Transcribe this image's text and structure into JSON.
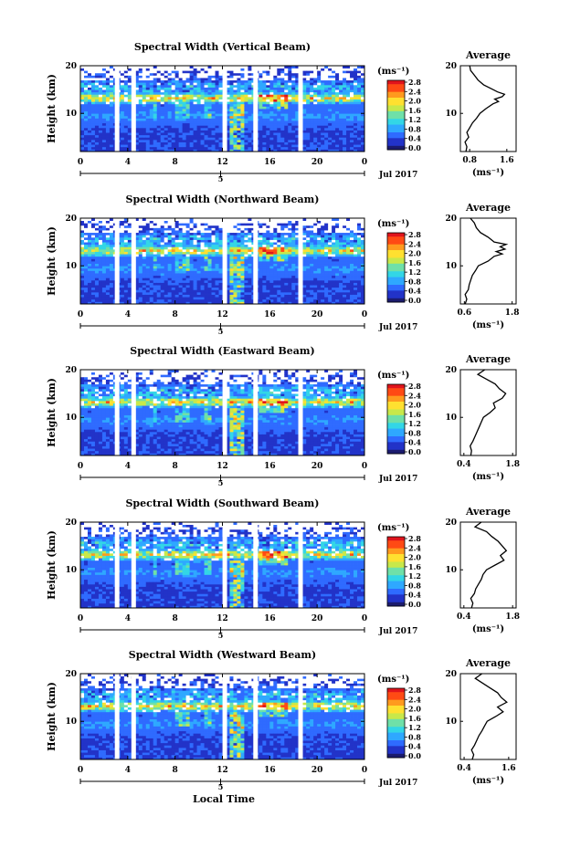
{
  "colors": {
    "colormap": [
      "#1b1b6e",
      "#2233c8",
      "#2f6bff",
      "#2fa8ff",
      "#33d6e6",
      "#6fe0a8",
      "#c8e84a",
      "#ffe030",
      "#ff9a1e",
      "#ff4a14",
      "#e0141c"
    ],
    "line": "#000000",
    "gap": "#ffffff"
  },
  "footer": {
    "xlabel": "Local Time"
  },
  "chart_data": [
    {
      "type": "heatmap",
      "title": "Spectral Width (Vertical Beam)",
      "ylabel": "Height (km)",
      "xlim": [
        0,
        24
      ],
      "ylim": [
        2,
        20
      ],
      "xticks": [
        "0",
        "4",
        "8",
        "12",
        "16",
        "20",
        "0"
      ],
      "yticks": [
        "20",
        "10"
      ],
      "date_tick": "5",
      "date_label": "Jul 2017",
      "colorbar": {
        "unit": "(ms⁻¹)",
        "range": [
          0.0,
          2.8
        ],
        "ticks": [
          "2.8",
          "2.4",
          "2.0",
          "1.6",
          "1.2",
          "0.8",
          "0.4",
          "0.0"
        ]
      },
      "gaps_hours": [
        3.1,
        4.5,
        12.2,
        14.8,
        18.6
      ],
      "avg": {
        "title": "Average",
        "xlabel": "(ms⁻¹)",
        "xticks": [
          "0.8",
          "1.6"
        ],
        "xlim": [
          0.6,
          1.8
        ],
        "profile": [
          [
            2,
            0.72
          ],
          [
            3,
            0.74
          ],
          [
            4,
            0.7
          ],
          [
            5,
            0.78
          ],
          [
            6,
            0.74
          ],
          [
            7,
            0.8
          ],
          [
            8,
            0.86
          ],
          [
            9,
            0.95
          ],
          [
            10,
            1.02
          ],
          [
            11,
            1.15
          ],
          [
            12,
            1.3
          ],
          [
            12.5,
            1.42
          ],
          [
            13,
            1.34
          ],
          [
            13.5,
            1.5
          ],
          [
            14,
            1.55
          ],
          [
            14.5,
            1.4
          ],
          [
            15,
            1.3
          ],
          [
            16,
            1.1
          ],
          [
            17,
            0.98
          ],
          [
            18,
            0.9
          ],
          [
            19,
            0.82
          ],
          [
            20,
            0.8
          ]
        ]
      }
    },
    {
      "type": "heatmap",
      "title": "Spectral Width (Northward Beam)",
      "ylabel": "Height (km)",
      "xlim": [
        0,
        24
      ],
      "ylim": [
        2,
        20
      ],
      "xticks": [
        "0",
        "4",
        "8",
        "12",
        "16",
        "20",
        "0"
      ],
      "yticks": [
        "20",
        "10"
      ],
      "date_tick": "5",
      "date_label": "Jul 2017",
      "colorbar": {
        "unit": "(ms⁻¹)",
        "range": [
          0.0,
          2.8
        ],
        "ticks": [
          "2.8",
          "2.4",
          "2.0",
          "1.6",
          "1.2",
          "0.8",
          "0.4",
          "0.0"
        ]
      },
      "gaps_hours": [
        3.1,
        4.5,
        12.2,
        14.8,
        18.6
      ],
      "avg": {
        "title": "Average",
        "xlabel": "(ms⁻¹)",
        "xticks": [
          "0.6",
          "1.8"
        ],
        "xlim": [
          0.5,
          1.9
        ],
        "profile": [
          [
            2,
            0.62
          ],
          [
            3,
            0.66
          ],
          [
            4,
            0.62
          ],
          [
            5,
            0.7
          ],
          [
            6,
            0.72
          ],
          [
            7,
            0.76
          ],
          [
            8,
            0.8
          ],
          [
            9,
            0.88
          ],
          [
            10,
            0.95
          ],
          [
            11,
            1.2
          ],
          [
            12,
            1.35
          ],
          [
            12.5,
            1.55
          ],
          [
            13,
            1.4
          ],
          [
            13.5,
            1.62
          ],
          [
            14,
            1.5
          ],
          [
            14.5,
            1.65
          ],
          [
            15,
            1.35
          ],
          [
            16,
            1.2
          ],
          [
            17,
            1.0
          ],
          [
            18,
            0.9
          ],
          [
            19,
            0.85
          ],
          [
            20,
            0.75
          ]
        ]
      }
    },
    {
      "type": "heatmap",
      "title": "Spectral Width (Eastward Beam)",
      "ylabel": "Height (km)",
      "xlim": [
        0,
        24
      ],
      "ylim": [
        2,
        20
      ],
      "xticks": [
        "0",
        "4",
        "8",
        "12",
        "16",
        "20",
        "0"
      ],
      "yticks": [
        "20",
        "10"
      ],
      "date_tick": "5",
      "date_label": "Jul 2017",
      "colorbar": {
        "unit": "(ms⁻¹)",
        "range": [
          0.0,
          2.8
        ],
        "ticks": [
          "2.8",
          "2.4",
          "2.0",
          "1.6",
          "1.2",
          "0.8",
          "0.4",
          "0.0"
        ]
      },
      "gaps_hours": [
        3.1,
        4.5,
        12.2,
        14.8,
        18.6
      ],
      "avg": {
        "title": "Average",
        "xlabel": "(ms⁻¹)",
        "xticks": [
          "0.4",
          "1.8"
        ],
        "xlim": [
          0.3,
          1.9
        ],
        "profile": [
          [
            2,
            0.6
          ],
          [
            3,
            0.62
          ],
          [
            4,
            0.58
          ],
          [
            5,
            0.66
          ],
          [
            6,
            0.72
          ],
          [
            7,
            0.78
          ],
          [
            8,
            0.84
          ],
          [
            9,
            0.9
          ],
          [
            10,
            0.96
          ],
          [
            11,
            1.15
          ],
          [
            12,
            1.3
          ],
          [
            13,
            1.25
          ],
          [
            14,
            1.5
          ],
          [
            15,
            1.6
          ],
          [
            16,
            1.42
          ],
          [
            17,
            1.3
          ],
          [
            18,
            1.05
          ],
          [
            19,
            0.8
          ],
          [
            20,
            1.0
          ]
        ]
      }
    },
    {
      "type": "heatmap",
      "title": "Spectral Width (Southward Beam)",
      "ylabel": "Height (km)",
      "xlim": [
        0,
        24
      ],
      "ylim": [
        2,
        20
      ],
      "xticks": [
        "0",
        "4",
        "8",
        "12",
        "16",
        "20",
        "0"
      ],
      "yticks": [
        "20",
        "10"
      ],
      "date_tick": "5",
      "date_label": "Jul 2017",
      "colorbar": {
        "unit": "(ms⁻¹)",
        "range": [
          0.0,
          2.8
        ],
        "ticks": [
          "2.8",
          "2.4",
          "2.0",
          "1.6",
          "1.2",
          "0.8",
          "0.4",
          "0.0"
        ]
      },
      "gaps_hours": [
        3.1,
        4.5,
        12.2,
        14.8,
        18.6
      ],
      "avg": {
        "title": "Average",
        "xlabel": "(ms⁻¹)",
        "xticks": [
          "0.4",
          "1.8"
        ],
        "xlim": [
          0.3,
          1.9
        ],
        "profile": [
          [
            2,
            0.62
          ],
          [
            3,
            0.66
          ],
          [
            4,
            0.6
          ],
          [
            5,
            0.7
          ],
          [
            6,
            0.74
          ],
          [
            7,
            0.82
          ],
          [
            8,
            0.9
          ],
          [
            9,
            0.95
          ],
          [
            10,
            1.05
          ],
          [
            11,
            1.3
          ],
          [
            12,
            1.55
          ],
          [
            13,
            1.45
          ],
          [
            14,
            1.62
          ],
          [
            15,
            1.5
          ],
          [
            16,
            1.38
          ],
          [
            17,
            1.2
          ],
          [
            18,
            1.05
          ],
          [
            19,
            0.72
          ],
          [
            20,
            0.9
          ]
        ]
      }
    },
    {
      "type": "heatmap",
      "title": "Spectral Width (Westward Beam)",
      "ylabel": "Height (km)",
      "xlim": [
        0,
        24
      ],
      "ylim": [
        2,
        20
      ],
      "xticks": [
        "0",
        "4",
        "8",
        "12",
        "16",
        "20",
        "0"
      ],
      "yticks": [
        "20",
        "10"
      ],
      "date_tick": "5",
      "date_label": "Jul 2017",
      "colorbar": {
        "unit": "(ms⁻¹)",
        "range": [
          0.0,
          2.8
        ],
        "ticks": [
          "2.8",
          "2.4",
          "2.0",
          "1.6",
          "1.2",
          "0.8",
          "0.4",
          "0.0"
        ]
      },
      "gaps_hours": [
        3.1,
        4.5,
        12.2,
        14.8,
        18.6
      ],
      "avg": {
        "title": "Average",
        "xlabel": "(ms⁻¹)",
        "xticks": [
          "0.4",
          "1.6"
        ],
        "xlim": [
          0.3,
          1.8
        ],
        "profile": [
          [
            2,
            0.62
          ],
          [
            3,
            0.66
          ],
          [
            4,
            0.6
          ],
          [
            5,
            0.68
          ],
          [
            6,
            0.74
          ],
          [
            7,
            0.8
          ],
          [
            8,
            0.88
          ],
          [
            9,
            0.95
          ],
          [
            10,
            1.02
          ],
          [
            11,
            1.25
          ],
          [
            12,
            1.45
          ],
          [
            13,
            1.3
          ],
          [
            14,
            1.55
          ],
          [
            15,
            1.4
          ],
          [
            16,
            1.3
          ],
          [
            17,
            1.1
          ],
          [
            18,
            0.9
          ],
          [
            19,
            0.7
          ],
          [
            20,
            0.88
          ]
        ]
      }
    }
  ]
}
